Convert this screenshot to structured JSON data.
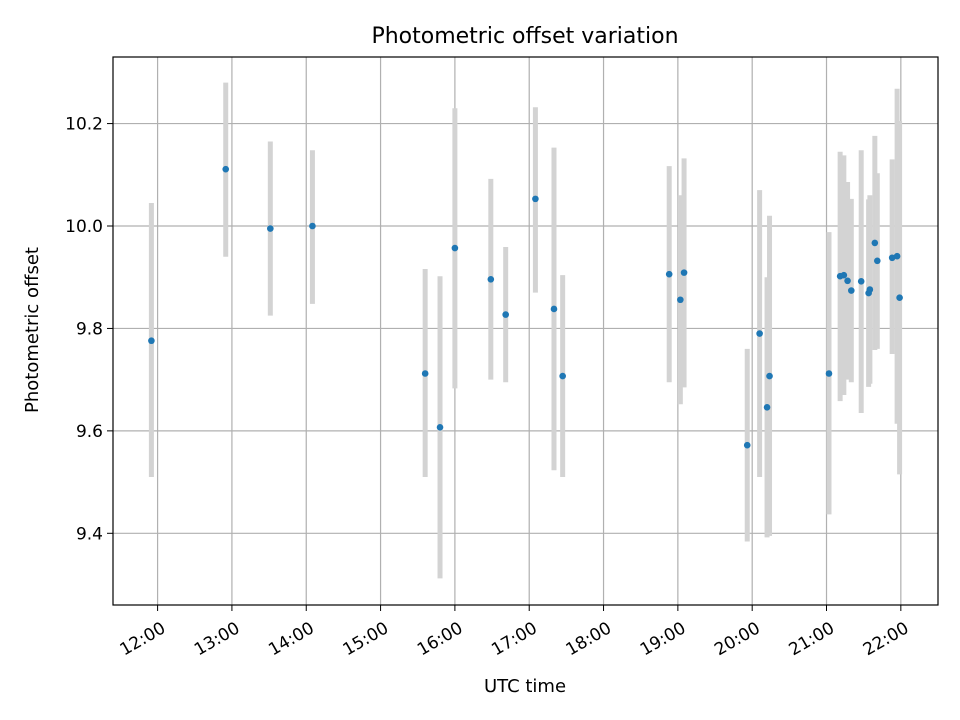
{
  "chart_data": {
    "type": "scatter",
    "title": "Photometric offset variation",
    "xlabel": "UTC time",
    "ylabel": "Photometric offset",
    "x_ticks": [
      "12:00",
      "13:00",
      "14:00",
      "15:00",
      "16:00",
      "17:00",
      "18:00",
      "19:00",
      "20:00",
      "21:00",
      "22:00"
    ],
    "y_ticks": [
      "9.4",
      "9.6",
      "9.8",
      "10.0",
      "10.2"
    ],
    "xlim": [
      "11:24",
      "22:30"
    ],
    "ylim": [
      9.26,
      10.33
    ],
    "grid": true,
    "colors": {
      "marker": "#1f77b4",
      "errorbar": "#d3d3d3",
      "grid": "#b0b0b0"
    },
    "series": [
      {
        "points": [
          {
            "x": "11:55",
            "y": 9.776,
            "lo": 9.51,
            "hi": 10.045
          },
          {
            "x": "12:55",
            "y": 10.111,
            "lo": 9.94,
            "hi": 10.28
          },
          {
            "x": "13:31",
            "y": 9.995,
            "lo": 9.825,
            "hi": 10.165
          },
          {
            "x": "14:05",
            "y": 10.0,
            "lo": 9.848,
            "hi": 10.148
          },
          {
            "x": "15:36",
            "y": 9.712,
            "lo": 9.51,
            "hi": 9.916
          },
          {
            "x": "15:48",
            "y": 9.607,
            "lo": 9.312,
            "hi": 9.902
          },
          {
            "x": "16:00",
            "y": 9.957,
            "lo": 9.683,
            "hi": 10.23
          },
          {
            "x": "16:29",
            "y": 9.896,
            "lo": 9.7,
            "hi": 10.092
          },
          {
            "x": "16:41",
            "y": 9.827,
            "lo": 9.695,
            "hi": 9.959
          },
          {
            "x": "17:05",
            "y": 10.053,
            "lo": 9.87,
            "hi": 10.232
          },
          {
            "x": "17:20",
            "y": 9.838,
            "lo": 9.523,
            "hi": 10.153
          },
          {
            "x": "17:27",
            "y": 9.707,
            "lo": 9.51,
            "hi": 9.904
          },
          {
            "x": "18:53",
            "y": 9.906,
            "lo": 9.695,
            "hi": 10.117
          },
          {
            "x": "19:02",
            "y": 9.856,
            "lo": 9.652,
            "hi": 10.06
          },
          {
            "x": "19:05",
            "y": 9.909,
            "lo": 9.685,
            "hi": 10.132
          },
          {
            "x": "19:56",
            "y": 9.572,
            "lo": 9.384,
            "hi": 9.76
          },
          {
            "x": "20:06",
            "y": 9.79,
            "lo": 9.51,
            "hi": 10.07
          },
          {
            "x": "20:12",
            "y": 9.646,
            "lo": 9.392,
            "hi": 9.9
          },
          {
            "x": "20:14",
            "y": 9.707,
            "lo": 9.395,
            "hi": 10.02
          },
          {
            "x": "21:02",
            "y": 9.712,
            "lo": 9.437,
            "hi": 9.988
          },
          {
            "x": "21:11",
            "y": 9.902,
            "lo": 9.658,
            "hi": 10.145
          },
          {
            "x": "21:14",
            "y": 9.904,
            "lo": 9.67,
            "hi": 10.138
          },
          {
            "x": "21:17",
            "y": 9.893,
            "lo": 9.7,
            "hi": 10.086
          },
          {
            "x": "21:20",
            "y": 9.874,
            "lo": 9.695,
            "hi": 10.053
          },
          {
            "x": "21:28",
            "y": 9.892,
            "lo": 9.635,
            "hi": 10.148
          },
          {
            "x": "21:34",
            "y": 9.869,
            "lo": 9.686,
            "hi": 10.052
          },
          {
            "x": "21:35",
            "y": 9.876,
            "lo": 9.692,
            "hi": 10.06
          },
          {
            "x": "21:39",
            "y": 9.967,
            "lo": 9.758,
            "hi": 10.176
          },
          {
            "x": "21:41",
            "y": 9.932,
            "lo": 9.76,
            "hi": 10.103
          },
          {
            "x": "21:53",
            "y": 9.938,
            "lo": 9.75,
            "hi": 10.13
          },
          {
            "x": "21:57",
            "y": 9.941,
            "lo": 9.614,
            "hi": 10.268
          },
          {
            "x": "21:59",
            "y": 9.86,
            "lo": 9.515,
            "hi": 10.205
          }
        ]
      }
    ]
  }
}
